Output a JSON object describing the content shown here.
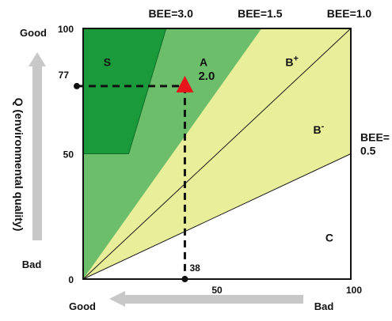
{
  "chart_data": {
    "type": "area",
    "title": "",
    "xlabel": "",
    "ylabel": "Q (environmental quality)",
    "xlim": [
      0,
      100
    ],
    "ylim": [
      0,
      100
    ],
    "x_direction_labels": {
      "left": "Good",
      "right": "Bad"
    },
    "y_direction_labels": {
      "top": "Good",
      "bottom": "Bad"
    },
    "x_ticks": [
      {
        "value": 0,
        "label": "0"
      },
      {
        "value": 50,
        "label": "50"
      },
      {
        "value": 100,
        "label": "100"
      }
    ],
    "y_ticks": [
      {
        "value": 0,
        "label": ""
      },
      {
        "value": 50,
        "label": "50"
      },
      {
        "value": 100,
        "label": "100"
      }
    ],
    "bee_lines": [
      {
        "label": "BEE=3.0",
        "slope": 3.0,
        "stroke": "none"
      },
      {
        "label": "BEE=1.5",
        "slope": 1.5,
        "stroke": "none"
      },
      {
        "label": "BEE=1.0",
        "slope": 1.0,
        "stroke": "#1a1a1a"
      },
      {
        "label": "BEE=\n0.5",
        "slope": 0.5,
        "stroke": "#1a1a1a"
      }
    ],
    "regions": [
      {
        "label": "C",
        "color": "#ffffff",
        "label_at": [
          92,
          15
        ]
      },
      {
        "label": "B-",
        "base": "B",
        "sup": "-",
        "color": "#e9ee9a",
        "label_at": [
          88,
          58
        ]
      },
      {
        "label": "B+",
        "base": "B",
        "sup": "+",
        "color": "#e9ee9a",
        "label_at": [
          78,
          85
        ]
      },
      {
        "label": "A",
        "color": "#6dbe6b",
        "label_at": [
          45,
          85
        ]
      },
      {
        "label": "S",
        "color": "#1a9a3a",
        "label_at": [
          9,
          85
        ]
      }
    ],
    "s_region_boundary": [
      [
        0,
        100
      ],
      [
        31,
        100
      ],
      [
        17,
        50
      ],
      [
        0,
        50
      ]
    ],
    "point": {
      "x": 38,
      "y": 77,
      "label": "2.0",
      "x_label": "38",
      "y_label": "77",
      "marker": "triangle",
      "color": "#e8141b"
    },
    "colors": {
      "s_region": "#1a9a3a",
      "a_region": "#6dbe6b",
      "b_region": "#e9ee9a",
      "c_region": "#ffffff",
      "point": "#e8141b",
      "arrows": "#c8c8c8"
    },
    "grid": false
  }
}
